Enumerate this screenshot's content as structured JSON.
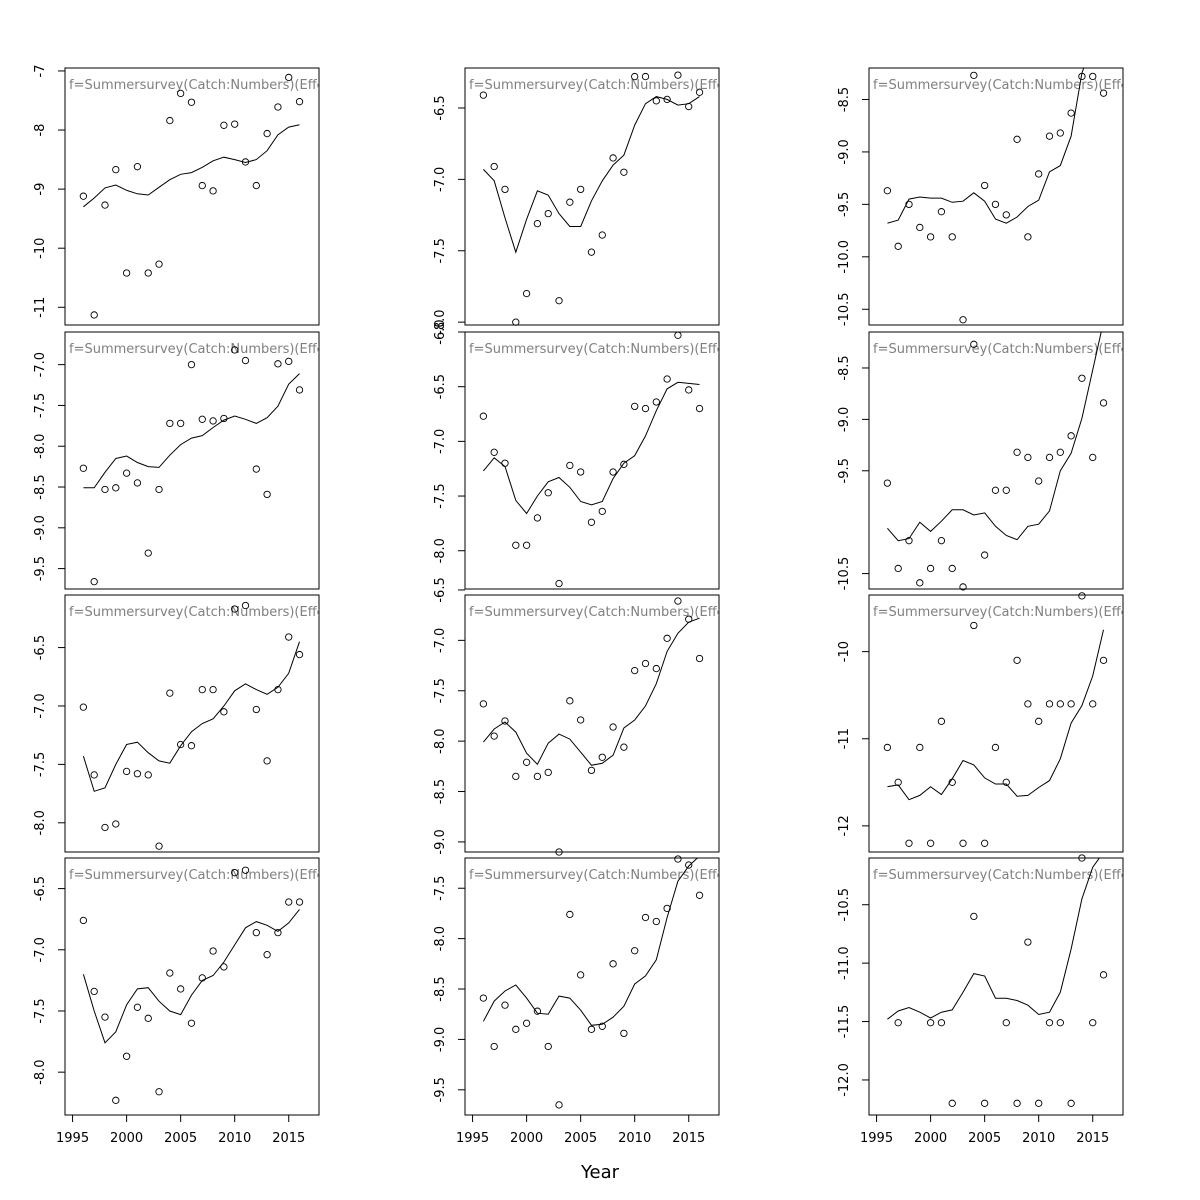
{
  "xlabel": "Year",
  "chart_data": [
    {
      "type": "scatter",
      "title": "f=Summersurvey(Catch:Numbers)(Effort)",
      "ylim": [
        -11.3,
        -6.95
      ],
      "yticks": [
        -7,
        -8,
        -9,
        -10,
        -11
      ],
      "xticks": [],
      "x": [
        1996,
        1997,
        1998,
        1999,
        2000,
        2001,
        2002,
        2003,
        2004,
        2005,
        2006,
        2007,
        2008,
        2009,
        2010,
        2011,
        2012,
        2013,
        2014,
        2015,
        2016
      ],
      "points": [
        -9.12,
        -11.13,
        -9.27,
        -8.67,
        -10.42,
        -8.62,
        -10.42,
        -10.27,
        -7.84,
        -7.38,
        -7.53,
        -8.94,
        -9.03,
        -7.92,
        -7.9,
        -8.54,
        -8.94,
        -8.06,
        -7.61,
        -7.11,
        -7.52
      ],
      "fit": [
        -9.3,
        -9.15,
        -8.98,
        -8.93,
        -9.02,
        -9.08,
        -9.1,
        -8.97,
        -8.84,
        -8.75,
        -8.72,
        -8.63,
        -8.52,
        -8.46,
        -8.5,
        -8.55,
        -8.5,
        -8.35,
        -8.08,
        -7.95,
        -7.91
      ]
    },
    {
      "type": "scatter",
      "title": "f=Summersurvey(Catch:Numbers)(Effort)",
      "ylim": [
        -8.02,
        -6.22
      ],
      "yticks": [
        -6.5,
        -7.0,
        -7.5,
        -8.0
      ],
      "xticks": [],
      "x": [
        1996,
        1997,
        1998,
        1999,
        2000,
        2001,
        2002,
        2003,
        2004,
        2005,
        2006,
        2007,
        2008,
        2009,
        2010,
        2011,
        2012,
        2013,
        2014,
        2015,
        2016
      ],
      "points": [
        -6.41,
        -6.91,
        -7.07,
        -8.0,
        -7.8,
        -7.31,
        -7.24,
        -7.85,
        -7.16,
        -7.07,
        -7.51,
        -7.39,
        -6.85,
        -6.95,
        -6.28,
        -6.28,
        -6.45,
        -6.44,
        -6.27,
        -6.49,
        -6.39
      ],
      "fit": [
        -6.93,
        -7.01,
        -7.27,
        -7.51,
        -7.28,
        -7.08,
        -7.11,
        -7.24,
        -7.33,
        -7.33,
        -7.15,
        -7.01,
        -6.9,
        -6.83,
        -6.62,
        -6.47,
        -6.42,
        -6.44,
        -6.48,
        -6.47,
        -6.42
      ]
    },
    {
      "type": "scatter",
      "title": "f=Summersurvey(Catch:Numbers)(Effort)",
      "ylim": [
        -10.65,
        -8.2
      ],
      "yticks": [
        -8.5,
        -9.0,
        -9.5,
        -10.0,
        -10.5
      ],
      "xticks": [],
      "x": [
        1996,
        1997,
        1998,
        1999,
        2000,
        2001,
        2002,
        2003,
        2004,
        2005,
        2006,
        2007,
        2008,
        2009,
        2010,
        2011,
        2012,
        2013,
        2014,
        2015,
        2016
      ],
      "points": [
        -9.37,
        -9.9,
        -9.5,
        -9.72,
        -9.81,
        -9.57,
        -9.81,
        -10.6,
        -8.27,
        -9.32,
        -9.5,
        -9.6,
        -8.88,
        -9.81,
        -9.21,
        -8.85,
        -8.82,
        -8.63,
        -8.28,
        -8.28,
        -8.44
      ],
      "fit": [
        -9.68,
        -9.65,
        -9.45,
        -9.43,
        -9.44,
        -9.44,
        -9.48,
        -9.47,
        -9.39,
        -9.47,
        -9.64,
        -9.68,
        -9.62,
        -9.52,
        -9.46,
        -9.19,
        -9.13,
        -8.85,
        -8.25,
        -7.95,
        -7.9
      ]
    },
    {
      "type": "scatter",
      "title": "f=Summersurvey(Catch:Numbers)(Effort)",
      "ylim": [
        -9.75,
        -6.6
      ],
      "yticks": [
        -7.0,
        -7.5,
        -8.0,
        -8.5,
        -9.0,
        -9.5
      ],
      "xticks": [],
      "x": [
        1996,
        1997,
        1998,
        1999,
        2000,
        2001,
        2002,
        2003,
        2004,
        2005,
        2006,
        2007,
        2008,
        2009,
        2010,
        2011,
        2012,
        2013,
        2014,
        2015,
        2016
      ],
      "points": [
        -8.27,
        -9.66,
        -8.53,
        -8.51,
        -8.33,
        -8.45,
        -9.31,
        -8.53,
        -7.72,
        -7.72,
        -7.0,
        -7.67,
        -7.69,
        -7.66,
        -6.82,
        -6.95,
        -8.28,
        -8.59,
        -6.99,
        -6.96,
        -7.31
      ],
      "fit": [
        -8.51,
        -8.51,
        -8.32,
        -8.15,
        -8.12,
        -8.2,
        -8.25,
        -8.26,
        -8.11,
        -7.98,
        -7.9,
        -7.87,
        -7.77,
        -7.68,
        -7.63,
        -7.67,
        -7.72,
        -7.65,
        -7.51,
        -7.24,
        -7.11
      ]
    },
    {
      "type": "scatter",
      "title": "f=Summersurvey(Catch:Numbers)(Effort)",
      "ylim": [
        -8.35,
        -6.0
      ],
      "yticks": [
        -6.0,
        -6.5,
        -7.0,
        -7.5,
        -8.0
      ],
      "xticks": [],
      "x": [
        1996,
        1997,
        1998,
        1999,
        2000,
        2001,
        2002,
        2003,
        2004,
        2005,
        2006,
        2007,
        2008,
        2009,
        2010,
        2011,
        2012,
        2013,
        2014,
        2015,
        2016
      ],
      "points": [
        -6.77,
        -7.1,
        -7.2,
        -7.95,
        -7.95,
        -7.7,
        -7.47,
        -8.3,
        -7.22,
        -7.28,
        -7.74,
        -7.64,
        -7.28,
        -7.21,
        -6.68,
        -6.7,
        -6.64,
        -6.43,
        -6.03,
        -6.53,
        -6.7
      ],
      "fit": [
        -7.27,
        -7.15,
        -7.23,
        -7.54,
        -7.66,
        -7.5,
        -7.37,
        -7.33,
        -7.42,
        -7.55,
        -7.58,
        -7.55,
        -7.34,
        -7.2,
        -7.13,
        -6.95,
        -6.72,
        -6.52,
        -6.46,
        -6.47,
        -6.48
      ]
    },
    {
      "type": "scatter",
      "title": "f=Summersurvey(Catch:Numbers)(Effort)",
      "ylim": [
        -10.65,
        -8.15
      ],
      "yticks": [
        -8.5,
        -9.0,
        -9.5,
        -10.5
      ],
      "xticks": [],
      "x": [
        1996,
        1997,
        1998,
        1999,
        2000,
        2001,
        2002,
        2003,
        2004,
        2005,
        2006,
        2007,
        2008,
        2009,
        2010,
        2011,
        2012,
        2013,
        2014,
        2015,
        2016
      ],
      "points": [
        -9.62,
        -10.45,
        -10.18,
        -10.59,
        -10.45,
        -10.18,
        -10.45,
        -10.63,
        -8.27,
        -10.32,
        -9.69,
        -9.69,
        -9.32,
        -9.37,
        -9.6,
        -9.37,
        -9.32,
        -9.16,
        -8.6,
        -9.37,
        -8.84
      ],
      "fit": [
        -10.06,
        -10.18,
        -10.16,
        -10.0,
        -10.09,
        -9.99,
        -9.88,
        -9.88,
        -9.93,
        -9.91,
        -10.04,
        -10.13,
        -10.17,
        -10.04,
        -10.02,
        -9.89,
        -9.5,
        -9.33,
        -8.99,
        -8.52,
        -8.05
      ]
    },
    {
      "type": "scatter",
      "title": "f=Summersurvey(Catch:Numbers)(Effort)",
      "ylim": [
        -8.25,
        -6.05
      ],
      "yticks": [
        -6.5,
        -7.0,
        -7.5,
        -8.0
      ],
      "xticks": [],
      "x": [
        1996,
        1997,
        1998,
        1999,
        2000,
        2001,
        2002,
        2003,
        2004,
        2005,
        2006,
        2007,
        2008,
        2009,
        2010,
        2011,
        2012,
        2013,
        2014,
        2015,
        2016
      ],
      "points": [
        -7.01,
        -7.59,
        -8.04,
        -8.01,
        -7.56,
        -7.58,
        -7.59,
        -8.2,
        -6.89,
        -7.33,
        -7.34,
        -6.86,
        -6.86,
        -7.05,
        -6.17,
        -6.14,
        -7.03,
        -7.47,
        -6.86,
        -6.41,
        -6.56
      ],
      "fit": [
        -7.43,
        -7.73,
        -7.7,
        -7.5,
        -7.33,
        -7.31,
        -7.4,
        -7.47,
        -7.49,
        -7.34,
        -7.22,
        -7.15,
        -7.11,
        -7.0,
        -6.87,
        -6.81,
        -6.86,
        -6.9,
        -6.84,
        -6.72,
        -6.45
      ]
    },
    {
      "type": "scatter",
      "title": "f=Summersurvey(Catch:Numbers)(Effort)",
      "ylim": [
        -9.1,
        -6.55
      ],
      "yticks": [
        -6.5,
        -7.0,
        -7.5,
        -8.0,
        -8.5,
        -9.0
      ],
      "xticks": [],
      "x": [
        1996,
        1997,
        1998,
        1999,
        2000,
        2001,
        2002,
        2003,
        2004,
        2005,
        2006,
        2007,
        2008,
        2009,
        2010,
        2011,
        2012,
        2013,
        2014,
        2015,
        2016
      ],
      "points": [
        -7.63,
        -7.95,
        -7.8,
        -8.35,
        -8.21,
        -8.35,
        -8.31,
        -9.1,
        -7.6,
        -7.79,
        -8.29,
        -8.16,
        -7.86,
        -8.06,
        -7.3,
        -7.23,
        -7.28,
        -6.98,
        -6.61,
        -6.79,
        -7.18
      ],
      "fit": [
        -8.01,
        -7.88,
        -7.81,
        -7.91,
        -8.12,
        -8.23,
        -8.02,
        -7.93,
        -7.98,
        -8.11,
        -8.24,
        -8.22,
        -8.14,
        -7.87,
        -7.79,
        -7.65,
        -7.43,
        -7.11,
        -6.93,
        -6.82,
        -6.78
      ]
    },
    {
      "type": "scatter",
      "title": "f=Summersurvey(Catch:Numbers)(Effort)",
      "ylim": [
        -12.3,
        -9.35
      ],
      "yticks": [
        -10.0,
        -11.0,
        -12.0
      ],
      "xticks": [],
      "x": [
        1996,
        1997,
        1998,
        1999,
        2000,
        2001,
        2002,
        2003,
        2004,
        2005,
        2006,
        2007,
        2008,
        2009,
        2010,
        2011,
        2012,
        2013,
        2014,
        2015,
        2016
      ],
      "points": [
        -11.1,
        -11.5,
        -12.2,
        -11.1,
        -12.2,
        -10.8,
        -11.5,
        -12.2,
        -9.7,
        -12.2,
        -11.1,
        -11.5,
        -10.1,
        -10.6,
        -10.8,
        -10.6,
        -10.6,
        -10.6,
        -9.36,
        -10.6,
        -10.1
      ],
      "fit": [
        -11.55,
        -11.53,
        -11.7,
        -11.65,
        -11.55,
        -11.64,
        -11.46,
        -11.25,
        -11.3,
        -11.45,
        -11.52,
        -11.52,
        -11.66,
        -11.65,
        -11.56,
        -11.48,
        -11.23,
        -10.82,
        -10.62,
        -10.28,
        -9.75
      ]
    },
    {
      "type": "scatter",
      "title": "f=Summersurvey(Catch:Numbers)(Effort)",
      "ylim": [
        -8.35,
        -6.25
      ],
      "yticks": [
        -6.5,
        -7.0,
        -7.5,
        -8.0
      ],
      "xticks": [
        1995,
        2000,
        2005,
        2010,
        2015
      ],
      "x": [
        1996,
        1997,
        1998,
        1999,
        2000,
        2001,
        2002,
        2003,
        2004,
        2005,
        2006,
        2007,
        2008,
        2009,
        2010,
        2011,
        2012,
        2013,
        2014,
        2015,
        2016
      ],
      "points": [
        -6.76,
        -7.34,
        -7.55,
        -8.23,
        -7.87,
        -7.47,
        -7.56,
        -8.16,
        -7.19,
        -7.32,
        -7.6,
        -7.23,
        -7.01,
        -7.14,
        -6.37,
        -6.35,
        -6.86,
        -7.04,
        -6.86,
        -6.61,
        -6.61
      ],
      "fit": [
        -7.2,
        -7.5,
        -7.76,
        -7.67,
        -7.45,
        -7.32,
        -7.31,
        -7.42,
        -7.5,
        -7.53,
        -7.37,
        -7.25,
        -7.21,
        -7.1,
        -6.96,
        -6.82,
        -6.77,
        -6.8,
        -6.85,
        -6.78,
        -6.67
      ]
    },
    {
      "type": "scatter",
      "title": "f=Summersurvey(Catch:Numbers)(Effort)",
      "ylim": [
        -9.75,
        -7.2
      ],
      "yticks": [
        -7.5,
        -8.0,
        -8.5,
        -9.0,
        -9.5
      ],
      "xticks": [
        1995,
        2000,
        2005,
        2010,
        2015
      ],
      "x": [
        1996,
        1997,
        1998,
        1999,
        2000,
        2001,
        2002,
        2003,
        2004,
        2005,
        2006,
        2007,
        2008,
        2009,
        2010,
        2011,
        2012,
        2013,
        2014,
        2015,
        2016
      ],
      "points": [
        -8.59,
        -9.07,
        -8.66,
        -8.9,
        -8.84,
        -8.72,
        -9.07,
        -9.65,
        -7.76,
        -8.36,
        -8.9,
        -8.87,
        -8.25,
        -8.94,
        -8.12,
        -7.79,
        -7.83,
        -7.7,
        -7.21,
        -7.27,
        -7.57
      ],
      "fit": [
        -8.82,
        -8.62,
        -8.52,
        -8.46,
        -8.59,
        -8.74,
        -8.75,
        -8.57,
        -8.59,
        -8.71,
        -8.86,
        -8.85,
        -8.78,
        -8.67,
        -8.45,
        -8.37,
        -8.21,
        -7.79,
        -7.43,
        -7.28,
        -7.18
      ]
    },
    {
      "type": "scatter",
      "title": "f=Summersurvey(Catch:Numbers)(Effort)",
      "ylim": [
        -12.3,
        -10.1
      ],
      "yticks": [
        -10.5,
        -11.0,
        -11.5,
        -12.0
      ],
      "xticks": [
        1995,
        2000,
        2005,
        2010,
        2015
      ],
      "x": [
        1996,
        1997,
        1998,
        1999,
        2000,
        2001,
        2002,
        2003,
        2004,
        2005,
        2006,
        2007,
        2008,
        2009,
        2010,
        2011,
        2012,
        2013,
        2014,
        2015,
        2016
      ],
      "points": [
        null,
        -11.51,
        null,
        null,
        -11.51,
        -11.51,
        -12.2,
        null,
        -10.6,
        -12.2,
        null,
        -11.51,
        -12.2,
        -10.82,
        -12.2,
        -11.51,
        -11.51,
        -12.2,
        -10.1,
        -11.51,
        -11.1
      ],
      "fit": [
        -11.48,
        -11.41,
        -11.38,
        -11.42,
        -11.47,
        -11.42,
        -11.4,
        -11.25,
        -11.09,
        -11.11,
        -11.3,
        -11.3,
        -11.32,
        -11.36,
        -11.44,
        -11.42,
        -11.25,
        -10.88,
        -10.45,
        -10.18,
        -10.05
      ]
    }
  ]
}
